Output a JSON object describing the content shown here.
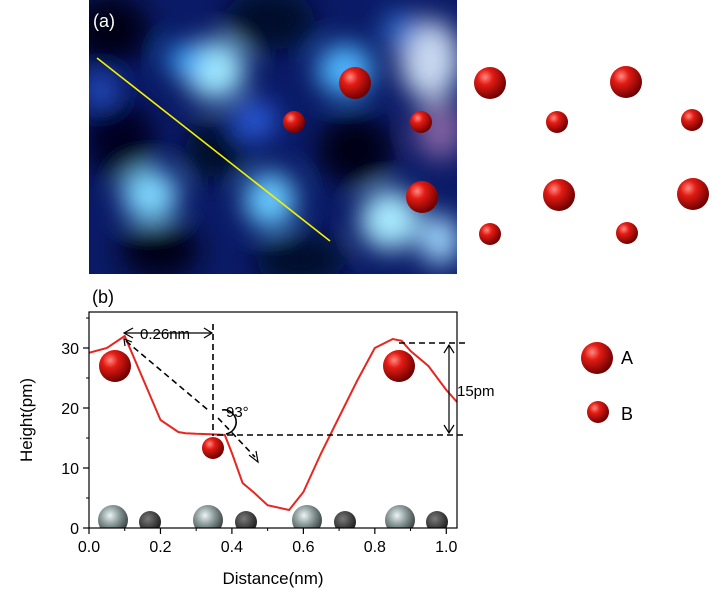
{
  "panels": {
    "a_label": "(a)",
    "b_label": "(b)"
  },
  "colors": {
    "profile_line": "#e8261f",
    "scan_line": "#f4f000",
    "atom_red": "#c00000",
    "atom_grey": "#888888"
  },
  "legend": {
    "items": [
      {
        "label": "A",
        "symbol": "large-red-atom"
      },
      {
        "label": "B",
        "symbol": "small-red-atom"
      }
    ]
  },
  "annotations": {
    "distance": "0.26nm",
    "angle": "93°",
    "height_diff": "15pm"
  },
  "chart_data": {
    "type": "line",
    "xlabel": "Distance(nm)",
    "ylabel": "Height(pm)",
    "xlim": [
      0.0,
      1.03
    ],
    "ylim": [
      0,
      36
    ],
    "xticks": [
      "0.0",
      "0.2",
      "0.4",
      "0.6",
      "0.8",
      "1.0"
    ],
    "yticks": [
      "0",
      "10",
      "20",
      "30"
    ],
    "grid": false,
    "series": [
      {
        "x": [
          0.0,
          0.05,
          0.1,
          0.15,
          0.2,
          0.25,
          0.27,
          0.3,
          0.35,
          0.38,
          0.4,
          0.43,
          0.46,
          0.5,
          0.56,
          0.6,
          0.65,
          0.7,
          0.75,
          0.8,
          0.85,
          0.875,
          0.9,
          0.95,
          1.0,
          1.03
        ],
        "y": [
          29.2,
          30.0,
          32.0,
          25.0,
          18.0,
          16.0,
          15.8,
          15.7,
          15.6,
          15.5,
          12.5,
          7.5,
          6.0,
          3.8,
          3.0,
          6.0,
          12.5,
          18.5,
          24.5,
          30.0,
          31.5,
          31.2,
          29.5,
          27.0,
          23.0,
          21.0
        ]
      }
    ]
  }
}
